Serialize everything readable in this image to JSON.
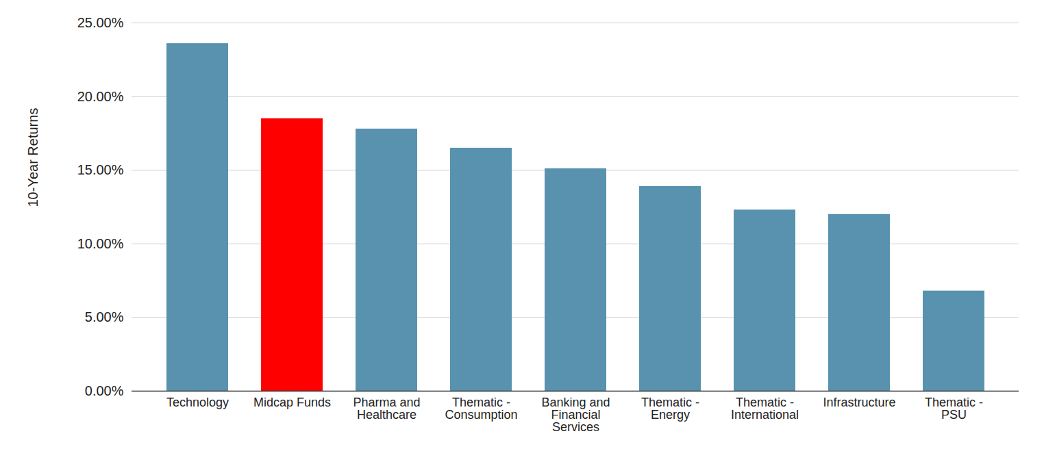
{
  "chart_data": {
    "type": "bar",
    "y_label": "10-Year Returns",
    "categories": [
      "Technology",
      "Midcap Funds",
      "Pharma and Healthcare",
      "Thematic - Consumption",
      "Banking and Financial Services",
      "Thematic - Energy",
      "Thematic - International",
      "Infrastructure",
      "Thematic - PSU"
    ],
    "values": [
      23.6,
      18.5,
      17.8,
      16.5,
      15.1,
      13.9,
      12.3,
      12.0,
      6.8
    ],
    "colors": [
      "#5892ae",
      "#ff0000",
      "#5892ae",
      "#5892ae",
      "#5892ae",
      "#5892ae",
      "#5892ae",
      "#5892ae",
      "#5892ae"
    ],
    "ylim": [
      0,
      25
    ],
    "yticks": [
      {
        "value": 0,
        "label": "0.00%"
      },
      {
        "value": 5,
        "label": "5.00%"
      },
      {
        "value": 10,
        "label": "10.00%"
      },
      {
        "value": 15,
        "label": "15.00%"
      },
      {
        "value": 20,
        "label": "20.00%"
      },
      {
        "value": 25,
        "label": "25.00%"
      }
    ],
    "grid": true
  }
}
